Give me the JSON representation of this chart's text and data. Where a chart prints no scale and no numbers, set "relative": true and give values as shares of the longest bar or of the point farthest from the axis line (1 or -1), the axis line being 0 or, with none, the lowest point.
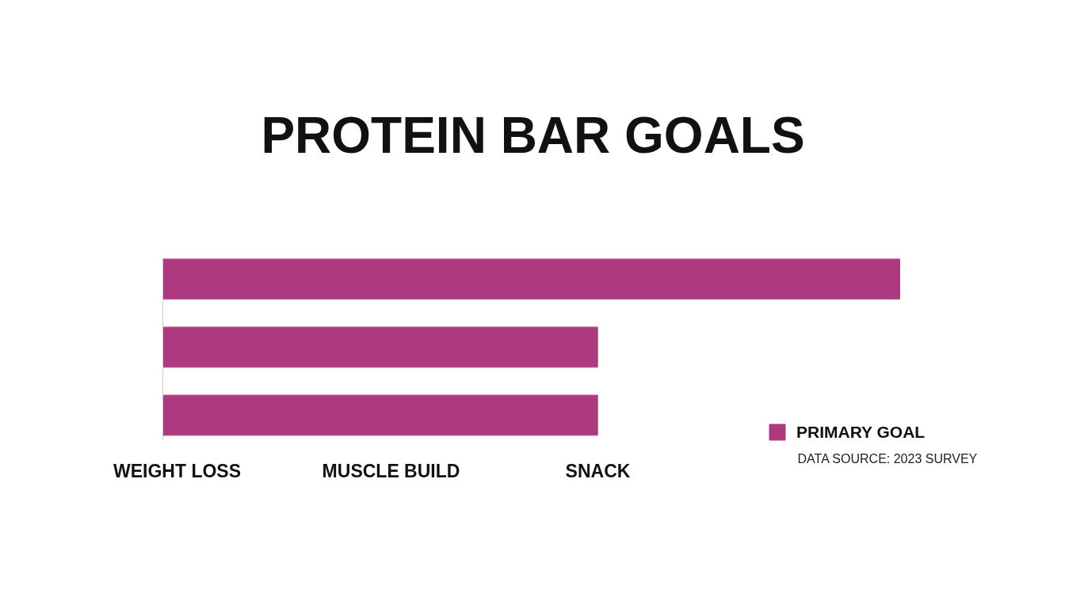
{
  "chart_data": {
    "type": "bar",
    "orientation": "horizontal",
    "relative": true,
    "title": "PROTEIN BAR GOALS",
    "categories": [
      null,
      null,
      null
    ],
    "series": [
      {
        "name": "PRIMARY GOAL",
        "color": "#ad3a7e",
        "values": [
          1,
          0.59,
          0.59
        ]
      }
    ],
    "legend": "bottom right",
    "grid": false,
    "annotations": [
      "WEIGHT LOSS",
      "MUSCLE BUILD",
      "SNACK",
      "DATA SOURCE: 2023 SURVEY"
    ]
  }
}
